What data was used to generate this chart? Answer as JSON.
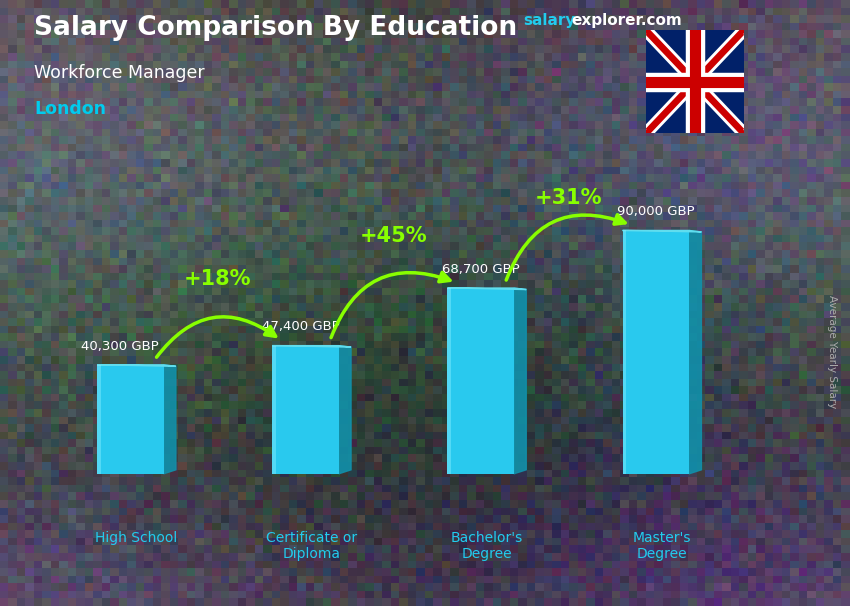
{
  "title": "Salary Comparison By Education",
  "subtitle": "Workforce Manager",
  "location": "London",
  "ylabel": "Average Yearly Salary",
  "categories": [
    "High School",
    "Certificate or\nDiploma",
    "Bachelor's\nDegree",
    "Master's\nDegree"
  ],
  "values": [
    40300,
    47400,
    68700,
    90000
  ],
  "labels": [
    "40,300 GBP",
    "47,400 GBP",
    "68,700 GBP",
    "90,000 GBP"
  ],
  "pct_changes": [
    "+18%",
    "+45%",
    "+31%"
  ],
  "bar_color_front": "#29c9ee",
  "bar_color_side": "#1190aa",
  "bar_color_top": "#60ddee",
  "bar_highlight": "#88eeff",
  "background_color": "#4a4a4a",
  "title_color": "#ffffff",
  "subtitle_color": "#ffffff",
  "location_color": "#00ccee",
  "label_color": "#ffffff",
  "label_color_dark": "#cccccc",
  "pct_color": "#88ff00",
  "arrow_color": "#88ff00",
  "xlabel_color": "#22ccee",
  "brand_salary_color": "#22ccee",
  "brand_rest_color": "#ffffff",
  "sidebar_color": "#aaaaaa",
  "figsize": [
    8.5,
    6.06
  ],
  "dpi": 100,
  "bar_positions": [
    0,
    1,
    2,
    3
  ],
  "bar_width": 0.38,
  "side_depth": 0.07,
  "ylim_max": 108000,
  "ylim_min": -22000,
  "xlim_min": -0.55,
  "xlim_max": 3.72
}
